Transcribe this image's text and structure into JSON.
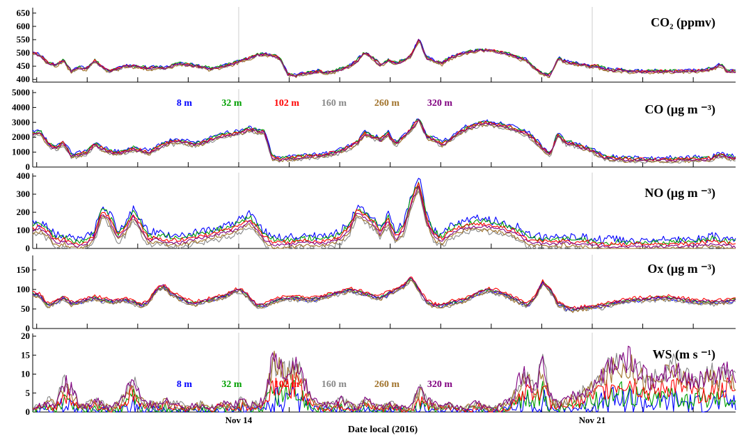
{
  "chart_data": {
    "type": "line",
    "xlabel": "Date local (2016)",
    "x_ticks": [
      "Nov 14",
      "Nov 21"
    ],
    "series_colors": {
      "8 m": "#0000ff",
      "32 m": "#00a000",
      "102 m": "#ff0000",
      "160 m": "#888888",
      "260 m": "#a0722a",
      "320 m": "#800080"
    },
    "legend": [
      "8 m",
      "32 m",
      "102 m",
      "160 m",
      "260 m",
      "320 m"
    ],
    "panels": [
      {
        "id": "co2",
        "title": "CO₂ (ppmv)",
        "ylim": [
          390,
          660
        ],
        "yticks": [
          400,
          450,
          500,
          550,
          600,
          650
        ],
        "profile": [
          500,
          490,
          460,
          455,
          470,
          430,
          445,
          440,
          470,
          445,
          430,
          440,
          450,
          450,
          445,
          440,
          445,
          440,
          450,
          460,
          455,
          450,
          445,
          440,
          445,
          450,
          460,
          470,
          480,
          490,
          495,
          490,
          480,
          420,
          415,
          420,
          425,
          430,
          425,
          430,
          440,
          450,
          470,
          500,
          480,
          455,
          470,
          460,
          470,
          490,
          550,
          480,
          470,
          460,
          480,
          490,
          500,
          505,
          510,
          510,
          505,
          500,
          490,
          480,
          470,
          440,
          420,
          415,
          480,
          465,
          460,
          455,
          450,
          450,
          440,
          435,
          435,
          430,
          430,
          430,
          430,
          430,
          430,
          430,
          430,
          432,
          432,
          435,
          440,
          455,
          430,
          430
        ]
      },
      {
        "id": "co",
        "title": "CO (μg m ⁻³)",
        "ylim": [
          0,
          5000
        ],
        "yticks": [
          0,
          1000,
          2000,
          3000,
          4000,
          5000
        ],
        "profile": [
          2200,
          2300,
          1500,
          1200,
          1600,
          700,
          800,
          900,
          1500,
          1200,
          1000,
          900,
          1000,
          1200,
          1100,
          900,
          1200,
          1500,
          1600,
          1700,
          1600,
          1500,
          1600,
          1800,
          2000,
          2100,
          2200,
          2300,
          2500,
          2400,
          2300,
          600,
          500,
          550,
          600,
          650,
          700,
          700,
          800,
          900,
          1100,
          1300,
          1600,
          2200,
          2000,
          1800,
          2200,
          1500,
          2000,
          2500,
          3200,
          2000,
          1800,
          1500,
          1800,
          2200,
          2500,
          2700,
          2900,
          2900,
          2800,
          2700,
          2600,
          2400,
          2200,
          1800,
          1200,
          800,
          2200,
          1600,
          1500,
          1300,
          1200,
          900,
          600,
          550,
          500,
          480,
          450,
          450,
          450,
          450,
          450,
          450,
          470,
          480,
          480,
          500,
          550,
          800,
          600,
          550
        ]
      },
      {
        "id": "no",
        "title": "NO (μg m ⁻³)",
        "ylim": [
          0,
          400
        ],
        "yticks": [
          0,
          100,
          200,
          300,
          400
        ],
        "profile": [
          100,
          110,
          80,
          30,
          40,
          20,
          10,
          30,
          60,
          200,
          150,
          60,
          100,
          180,
          110,
          40,
          50,
          40,
          30,
          30,
          40,
          50,
          60,
          70,
          80,
          90,
          100,
          120,
          150,
          110,
          50,
          20,
          20,
          20,
          25,
          30,
          30,
          25,
          30,
          40,
          60,
          100,
          200,
          170,
          140,
          80,
          150,
          50,
          100,
          250,
          350,
          150,
          60,
          40,
          80,
          100,
          110,
          120,
          120,
          120,
          110,
          100,
          90,
          70,
          40,
          30,
          30,
          25,
          30,
          30,
          25,
          25,
          20,
          15,
          10,
          10,
          10,
          10,
          10,
          10,
          10,
          10,
          12,
          12,
          12,
          15,
          15,
          20,
          25,
          20,
          15,
          10
        ]
      },
      {
        "id": "ox",
        "title": "Ox (μg m ⁻³)",
        "ylim": [
          0,
          180
        ],
        "yticks": [
          0,
          50,
          100,
          150
        ],
        "profile": [
          90,
          85,
          60,
          70,
          80,
          65,
          70,
          75,
          80,
          75,
          70,
          72,
          75,
          70,
          60,
          70,
          100,
          110,
          90,
          80,
          70,
          65,
          70,
          75,
          80,
          85,
          95,
          100,
          80,
          60,
          60,
          70,
          75,
          80,
          80,
          78,
          75,
          80,
          85,
          90,
          95,
          100,
          95,
          90,
          85,
          80,
          90,
          100,
          110,
          130,
          100,
          70,
          60,
          60,
          65,
          70,
          75,
          85,
          95,
          100,
          95,
          90,
          80,
          70,
          60,
          80,
          120,
          100,
          65,
          55,
          50,
          52,
          55,
          58,
          60,
          65,
          70,
          72,
          75,
          75,
          78,
          80,
          80,
          78,
          75,
          72,
          70,
          70,
          68,
          70,
          72,
          75
        ]
      },
      {
        "id": "ws",
        "title": "WS (m s ⁻¹)",
        "ylim": [
          0,
          20
        ],
        "yticks": [
          0,
          5,
          10,
          15,
          20
        ],
        "profile": [
          1,
          2,
          3,
          2,
          8,
          6,
          2,
          2,
          3,
          2,
          1,
          2,
          5,
          9,
          3,
          2,
          2,
          3,
          2,
          2,
          1,
          2,
          2,
          1,
          2,
          2,
          2,
          3,
          2,
          2,
          3,
          14,
          12,
          10,
          13,
          9,
          4,
          2,
          2,
          2,
          3,
          2,
          1,
          3,
          2,
          1,
          2,
          2,
          1,
          1,
          6,
          3,
          2,
          1,
          2,
          1,
          1,
          2,
          2,
          1,
          1,
          2,
          3,
          8,
          10,
          5,
          13,
          4,
          2,
          3,
          4,
          5,
          6,
          8,
          10,
          12,
          13,
          14,
          12,
          10,
          8,
          9,
          11,
          12,
          10,
          9,
          8,
          9,
          10,
          9,
          11,
          8
        ]
      }
    ]
  }
}
